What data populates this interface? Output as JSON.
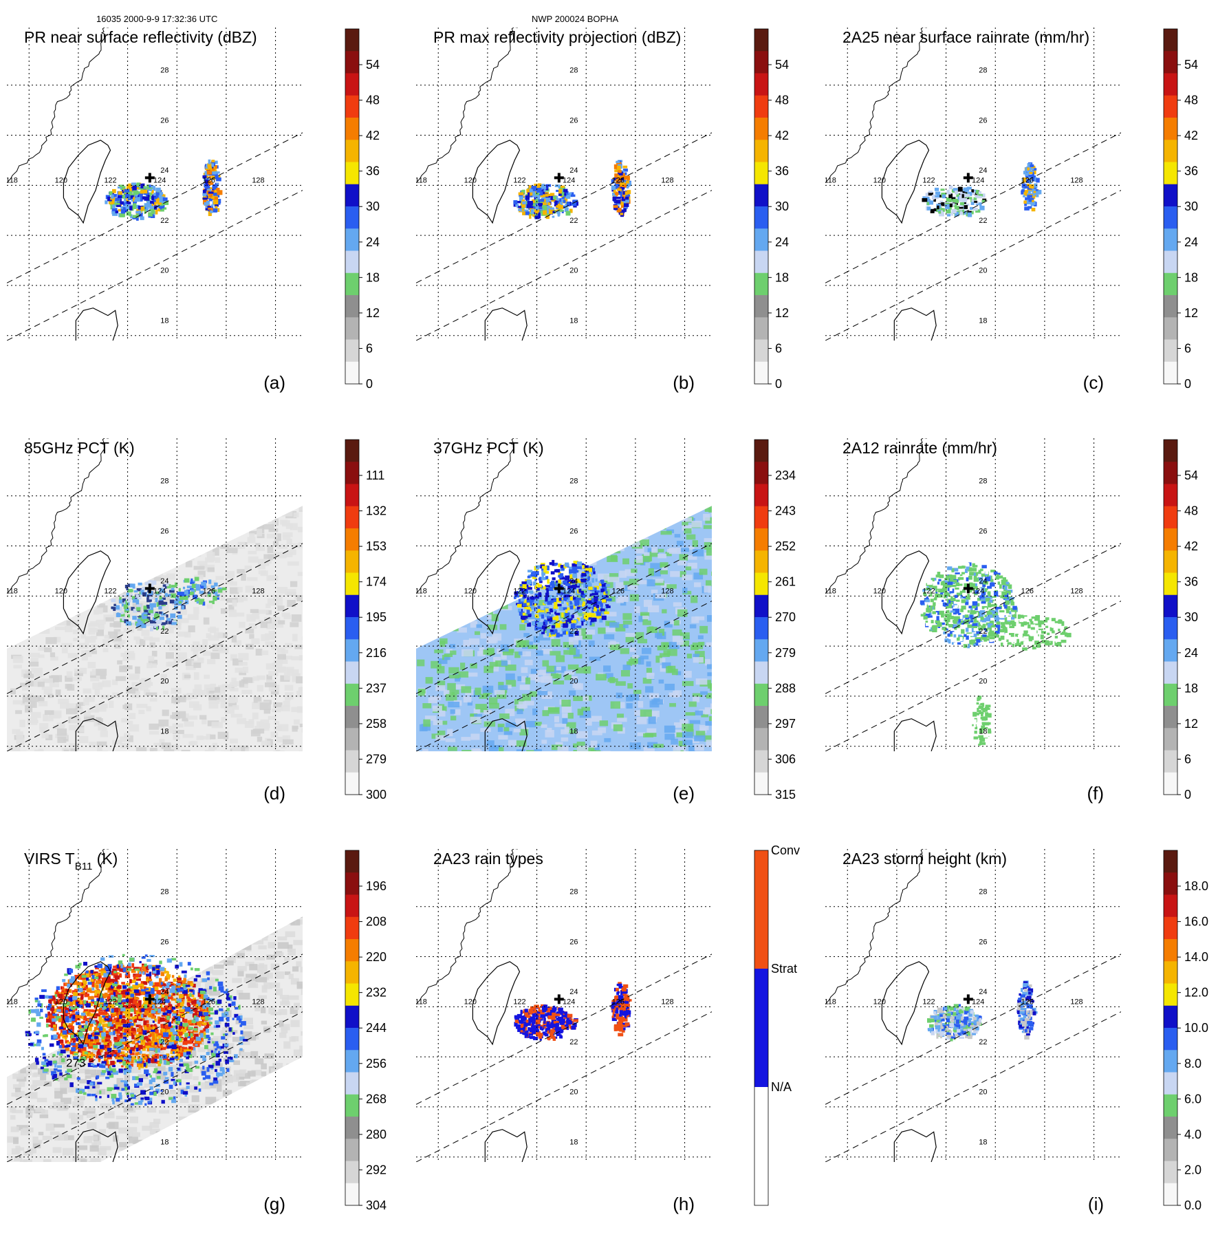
{
  "header": {
    "orbit": "16035 2000-9-9 17:32:36 UTC",
    "storm": "NWP 200024 BOPHA"
  },
  "map": {
    "lon_ticks": [
      "118",
      "120",
      "122",
      "124",
      "126",
      "128"
    ],
    "lat_ticks": [
      "28",
      "26",
      "24",
      "22",
      "20",
      "18"
    ],
    "center_lon": 124,
    "center_lat": 24
  },
  "chart_data": [
    {
      "id": "a",
      "type": "heatmap",
      "title": "PR near surface reflectivity (dBZ)",
      "label": "(a)",
      "colorbar": [
        "54",
        "48",
        "42",
        "36",
        "30",
        "24",
        "18",
        "12",
        "6",
        "0"
      ],
      "swath": "pr",
      "fields": "pr-refl"
    },
    {
      "id": "b",
      "type": "heatmap",
      "title": "PR max reflectivity projection (dBZ)",
      "label": "(b)",
      "colorbar": [
        "54",
        "48",
        "42",
        "36",
        "30",
        "24",
        "18",
        "12",
        "6",
        "0"
      ],
      "swath": "pr",
      "fields": "pr-max"
    },
    {
      "id": "c",
      "type": "heatmap",
      "title": "2A25 near surface rainrate (mm/hr)",
      "label": "(c)",
      "colorbar": [
        "54",
        "48",
        "42",
        "36",
        "30",
        "24",
        "18",
        "12",
        "6",
        "0"
      ],
      "swath": "pr",
      "fields": "pr-rain"
    },
    {
      "id": "d",
      "type": "heatmap",
      "title": "85GHz PCT (K)",
      "label": "(d)",
      "colorbar": [
        "111",
        "132",
        "153",
        "174",
        "195",
        "216",
        "237",
        "258",
        "279",
        "300"
      ],
      "swath": "tmi",
      "fields": "pct85"
    },
    {
      "id": "e",
      "type": "heatmap",
      "title": "37GHz PCT (K)",
      "label": "(e)",
      "colorbar": [
        "234",
        "243",
        "252",
        "261",
        "270",
        "279",
        "288",
        "297",
        "306",
        "315"
      ],
      "swath": "tmi",
      "fields": "pct37"
    },
    {
      "id": "f",
      "type": "heatmap",
      "title": "2A12 rainrate (mm/hr)",
      "label": "(f)",
      "colorbar": [
        "54",
        "48",
        "42",
        "36",
        "30",
        "24",
        "18",
        "12",
        "6",
        "0"
      ],
      "swath": "pr",
      "fields": "tmi-rain"
    },
    {
      "id": "g",
      "type": "heatmap",
      "title": "VIRS T",
      "title_sub": "B11",
      "title_tail": " (K)",
      "label": "(g)",
      "colorbar": [
        "196",
        "208",
        "220",
        "232",
        "244",
        "256",
        "268",
        "280",
        "292",
        "304"
      ],
      "swath": "virs",
      "fields": "virs",
      "contour_label": "273"
    },
    {
      "id": "h",
      "type": "heatmap",
      "title": "2A23 rain types",
      "label": "(h)",
      "colorbar_categories": [
        "Conv",
        "Strat",
        "N/A"
      ],
      "swath": "pr",
      "fields": "rain-types"
    },
    {
      "id": "i",
      "type": "heatmap",
      "title": "2A23 storm height (km)",
      "label": "(i)",
      "colorbar": [
        "18.0",
        "16.0",
        "14.0",
        "12.0",
        "10.0",
        "8.0",
        "6.0",
        "4.0",
        "2.0",
        "0.0"
      ],
      "swath": "pr",
      "fields": "storm-height"
    }
  ],
  "colors": {
    "scale": [
      "#f7f7f7",
      "#d6d6d6",
      "#b3b3b3",
      "#8f8f8f",
      "#6ecf6e",
      "#c8d6f2",
      "#64a8f0",
      "#2a5ef0",
      "#1010c8",
      "#f5e600",
      "#f5b400",
      "#f57d00",
      "#f03c10",
      "#c81414",
      "#8a0f0f",
      "#5a1a10"
    ],
    "coast": "#000000",
    "grid": "#000000"
  }
}
